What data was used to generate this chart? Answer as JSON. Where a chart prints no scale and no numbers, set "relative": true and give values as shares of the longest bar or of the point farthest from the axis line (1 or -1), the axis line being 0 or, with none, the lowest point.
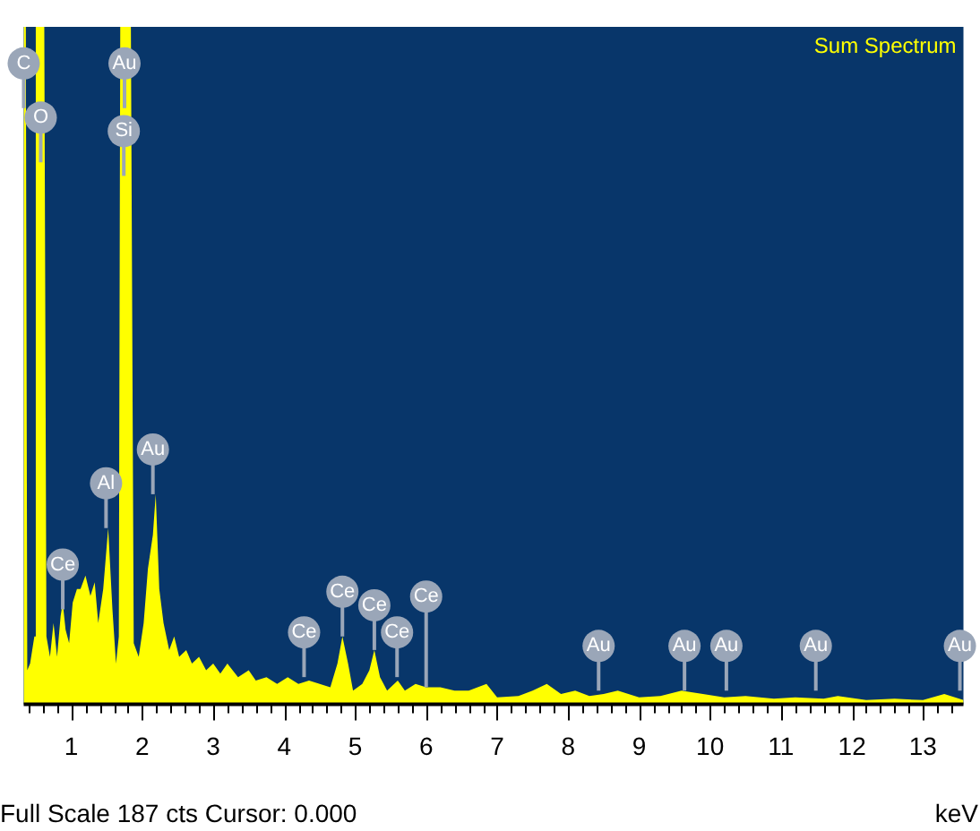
{
  "chart_data": {
    "type": "area",
    "title": "Sum Spectrum",
    "xlabel": "keV",
    "relative": true,
    "color": "#ffff00",
    "x": [
      0.33,
      0.36,
      0.38,
      0.42,
      0.48,
      0.5,
      0.62,
      0.65,
      0.7,
      0.75,
      0.8,
      0.85,
      0.88,
      0.92,
      0.97,
      1.02,
      1.08,
      1.13,
      1.2,
      1.27,
      1.33,
      1.38,
      1.45,
      1.52,
      1.58,
      1.63,
      1.67,
      1.69,
      1.84,
      1.88,
      1.95,
      2.02,
      2.08,
      2.15,
      2.19,
      2.24,
      2.3,
      2.38,
      2.45,
      2.52,
      2.62,
      2.7,
      2.8,
      2.9,
      3.0,
      3.1,
      3.2,
      3.35,
      3.5,
      3.6,
      3.75,
      3.9,
      4.05,
      4.2,
      4.35,
      4.5,
      4.65,
      4.75,
      4.82,
      4.9,
      4.97,
      5.1,
      5.2,
      5.27,
      5.35,
      5.45,
      5.6,
      5.7,
      5.85,
      6.0,
      6.2,
      6.4,
      6.6,
      6.85,
      7.0,
      7.3,
      7.5,
      7.7,
      7.9,
      8.1,
      8.3,
      8.5,
      8.7,
      9.0,
      9.3,
      9.6,
      9.9,
      10.2,
      10.5,
      10.9,
      11.2,
      11.6,
      11.8,
      12.2,
      12.6,
      13.0,
      13.3,
      13.57
    ],
    "values": [
      1,
      1,
      0.05,
      0.06,
      0.1,
      1,
      1,
      0.1,
      0.07,
      0.12,
      0.07,
      0.13,
      0.15,
      0.11,
      0.09,
      0.15,
      0.17,
      0.17,
      0.19,
      0.16,
      0.18,
      0.12,
      0.17,
      0.26,
      0.14,
      0.06,
      0.1,
      1,
      1,
      0.09,
      0.07,
      0.12,
      0.2,
      0.25,
      0.31,
      0.17,
      0.12,
      0.08,
      0.1,
      0.07,
      0.08,
      0.06,
      0.07,
      0.05,
      0.06,
      0.045,
      0.06,
      0.04,
      0.05,
      0.035,
      0.04,
      0.03,
      0.04,
      0.03,
      0.035,
      0.03,
      0.025,
      0.06,
      0.1,
      0.06,
      0.02,
      0.03,
      0.05,
      0.08,
      0.04,
      0.02,
      0.035,
      0.02,
      0.03,
      0.025,
      0.025,
      0.02,
      0.02,
      0.03,
      0.01,
      0.012,
      0.02,
      0.03,
      0.015,
      0.02,
      0.012,
      0.015,
      0.02,
      0.01,
      0.012,
      0.02,
      0.015,
      0.01,
      0.012,
      0.008,
      0.01,
      0.008,
      0.012,
      0.006,
      0.008,
      0.006,
      0.015,
      0.006
    ],
    "xlim": [
      0.33,
      13.57
    ],
    "xticks": [
      {
        "value": 0.4,
        "label": null
      },
      {
        "value": 0.6,
        "label": null
      },
      {
        "value": 0.8,
        "label": null
      },
      1,
      {
        "value": 1.2,
        "label": null
      },
      {
        "value": 1.4,
        "label": null
      },
      {
        "value": 1.6,
        "label": null
      },
      {
        "value": 1.8,
        "label": null
      },
      2,
      {
        "value": 2.2,
        "label": null
      },
      {
        "value": 2.4,
        "label": null
      },
      {
        "value": 2.6,
        "label": null
      },
      {
        "value": 2.8,
        "label": null
      },
      3,
      {
        "value": 3.2,
        "label": null
      },
      {
        "value": 3.4,
        "label": null
      },
      {
        "value": 3.6,
        "label": null
      },
      {
        "value": 3.8,
        "label": null
      },
      4,
      {
        "value": 4.2,
        "label": null
      },
      {
        "value": 4.4,
        "label": null
      },
      {
        "value": 4.6,
        "label": null
      },
      {
        "value": 4.8,
        "label": null
      },
      5,
      {
        "value": 5.2,
        "label": null
      },
      {
        "value": 5.4,
        "label": null
      },
      {
        "value": 5.6,
        "label": null
      },
      {
        "value": 5.8,
        "label": null
      },
      6,
      {
        "value": 6.2,
        "label": null
      },
      {
        "value": 6.4,
        "label": null
      },
      {
        "value": 6.6,
        "label": null
      },
      {
        "value": 6.8,
        "label": null
      },
      7,
      {
        "value": 7.2,
        "label": null
      },
      {
        "value": 7.4,
        "label": null
      },
      {
        "value": 7.6,
        "label": null
      },
      {
        "value": 7.8,
        "label": null
      },
      8,
      {
        "value": 8.2,
        "label": null
      },
      {
        "value": 8.4,
        "label": null
      },
      {
        "value": 8.6,
        "label": null
      },
      {
        "value": 8.8,
        "label": null
      },
      9,
      {
        "value": 9.2,
        "label": null
      },
      {
        "value": 9.4,
        "label": null
      },
      {
        "value": 9.6,
        "label": null
      },
      {
        "value": 9.8,
        "label": null
      },
      10,
      {
        "value": 10.2,
        "label": null
      },
      {
        "value": 10.4,
        "label": null
      },
      {
        "value": 10.6,
        "label": null
      },
      {
        "value": 10.8,
        "label": null
      },
      11,
      {
        "value": 11.2,
        "label": null
      },
      {
        "value": 11.4,
        "label": null
      },
      {
        "value": 11.6,
        "label": null
      },
      {
        "value": 11.8,
        "label": null
      },
      12,
      {
        "value": 12.2,
        "label": null
      },
      {
        "value": 12.4,
        "label": null
      },
      {
        "value": 12.6,
        "label": null
      },
      {
        "value": 12.8,
        "label": null
      },
      13,
      {
        "value": 13.2,
        "label": null
      },
      {
        "value": 13.4,
        "label": null
      }
    ],
    "annotations": [
      "Full Scale 187 cts Cursor: 0.000",
      {
        "text": "C",
        "x": 0.33,
        "y": 0.88
      },
      {
        "text": "O",
        "x": 0.57,
        "y": 0.8
      },
      {
        "text": "Au",
        "x": 1.75,
        "y": 0.88
      },
      {
        "text": "Si",
        "x": 1.74,
        "y": 0.78
      },
      {
        "text": "Ce",
        "x": 0.88,
        "y": 0.14
      },
      {
        "text": "Al",
        "x": 1.49,
        "y": 0.26
      },
      {
        "text": "Au",
        "x": 2.15,
        "y": 0.31
      },
      {
        "text": "Ce",
        "x": 4.28,
        "y": 0.04
      },
      {
        "text": "Ce",
        "x": 4.82,
        "y": 0.1
      },
      {
        "text": "Ce",
        "x": 5.27,
        "y": 0.08
      },
      {
        "text": "Ce",
        "x": 5.59,
        "y": 0.04
      },
      {
        "text": "Ce",
        "x": 6.0,
        "y": 0.025
      },
      {
        "text": "Au",
        "x": 8.43,
        "y": 0.02
      },
      {
        "text": "Au",
        "x": 9.64,
        "y": 0.02
      },
      {
        "text": "Au",
        "x": 10.23,
        "y": 0.02
      },
      {
        "text": "Au",
        "x": 11.49,
        "y": 0.02
      },
      {
        "text": "Au",
        "x": 13.52,
        "y": 0.02
      }
    ]
  }
}
